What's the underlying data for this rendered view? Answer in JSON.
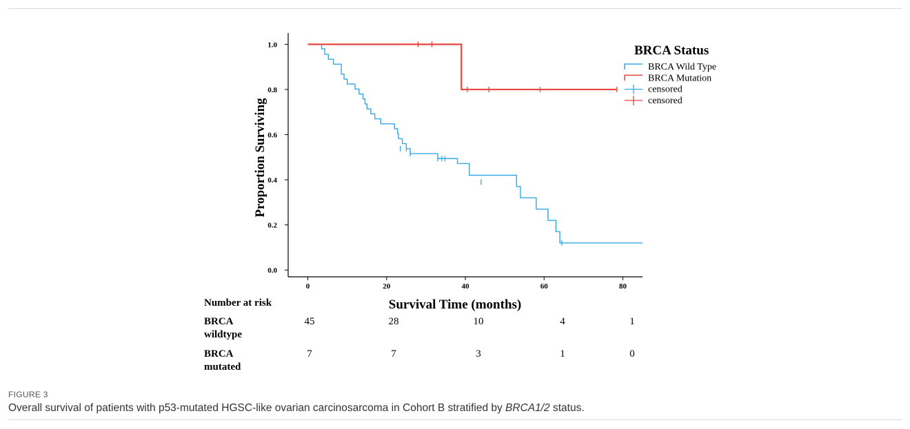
{
  "figure": {
    "label": "FIGURE 3",
    "caption_pre": "Overall survival of patients with p53-mutated HGSC-like ovarian carcinosarcoma in Cohort B stratified by ",
    "caption_em": "BRCA1/2",
    "caption_post": " status."
  },
  "risk_table": {
    "header": "Number at risk",
    "rows": [
      {
        "label_line1": "BRCA",
        "label_line2": "wildtype",
        "values": [
          "45",
          "28",
          "10",
          "4",
          "1"
        ]
      },
      {
        "label_line1": "BRCA",
        "label_line2": "mutated",
        "values": [
          "7",
          "7",
          "3",
          "1",
          "0"
        ]
      }
    ]
  },
  "chart_data": {
    "type": "line",
    "step": true,
    "xlabel": "Survival Time (months)",
    "ylabel": "Proportion Surviving",
    "xlim": [
      -5,
      85
    ],
    "ylim": [
      -0.03,
      1.05
    ],
    "xticks": [
      0,
      20,
      40,
      60,
      80
    ],
    "yticks": [
      0.0,
      0.2,
      0.4,
      0.6,
      0.8,
      1.0
    ],
    "ytick_labels": [
      "0.0",
      "0.2",
      "0.4",
      "0.6",
      "0.8",
      "1.0"
    ],
    "grid": false,
    "legend": {
      "title": "BRCA Status",
      "position": "top-right",
      "entries": [
        "BRCA Wild Type",
        "BRCA Mutation",
        "censored",
        "censored"
      ]
    },
    "series": [
      {
        "name": "BRCA Wild Type",
        "color": "#35a8e6",
        "x": [
          0,
          3.5,
          4.3,
          5.2,
          6.5,
          8.5,
          9.2,
          10,
          12,
          13,
          14,
          14.5,
          15,
          16,
          17,
          18.5,
          22,
          22.8,
          23,
          24,
          25,
          26,
          33,
          38,
          41,
          53,
          54,
          58,
          61,
          63,
          64,
          85
        ],
        "y": [
          1.0,
          0.98,
          0.956,
          0.934,
          0.912,
          0.868,
          0.846,
          0.824,
          0.802,
          0.78,
          0.758,
          0.736,
          0.714,
          0.692,
          0.67,
          0.648,
          0.626,
          0.604,
          0.582,
          0.56,
          0.538,
          0.516,
          0.494,
          0.472,
          0.42,
          0.37,
          0.32,
          0.27,
          0.22,
          0.17,
          0.12,
          0.12
        ],
        "censored": [
          {
            "x": 23.5,
            "y": 0.538
          },
          {
            "x": 25,
            "y": 0.538
          },
          {
            "x": 26,
            "y": 0.516
          },
          {
            "x": 33,
            "y": 0.494
          },
          {
            "x": 34,
            "y": 0.494
          },
          {
            "x": 34.8,
            "y": 0.494
          },
          {
            "x": 44,
            "y": 0.39
          },
          {
            "x": 61,
            "y": 0.245
          },
          {
            "x": 64.5,
            "y": 0.12
          }
        ]
      },
      {
        "name": "BRCA Mutation",
        "color": "#e8453c",
        "x": [
          0,
          39,
          78.5
        ],
        "y": [
          1.0,
          0.8,
          0.8
        ],
        "censored": [
          {
            "x": 28,
            "y": 1.0
          },
          {
            "x": 31.5,
            "y": 1.0
          },
          {
            "x": 40.5,
            "y": 0.8
          },
          {
            "x": 46,
            "y": 0.8
          },
          {
            "x": 59,
            "y": 0.8
          },
          {
            "x": 78.5,
            "y": 0.8
          }
        ]
      }
    ]
  }
}
